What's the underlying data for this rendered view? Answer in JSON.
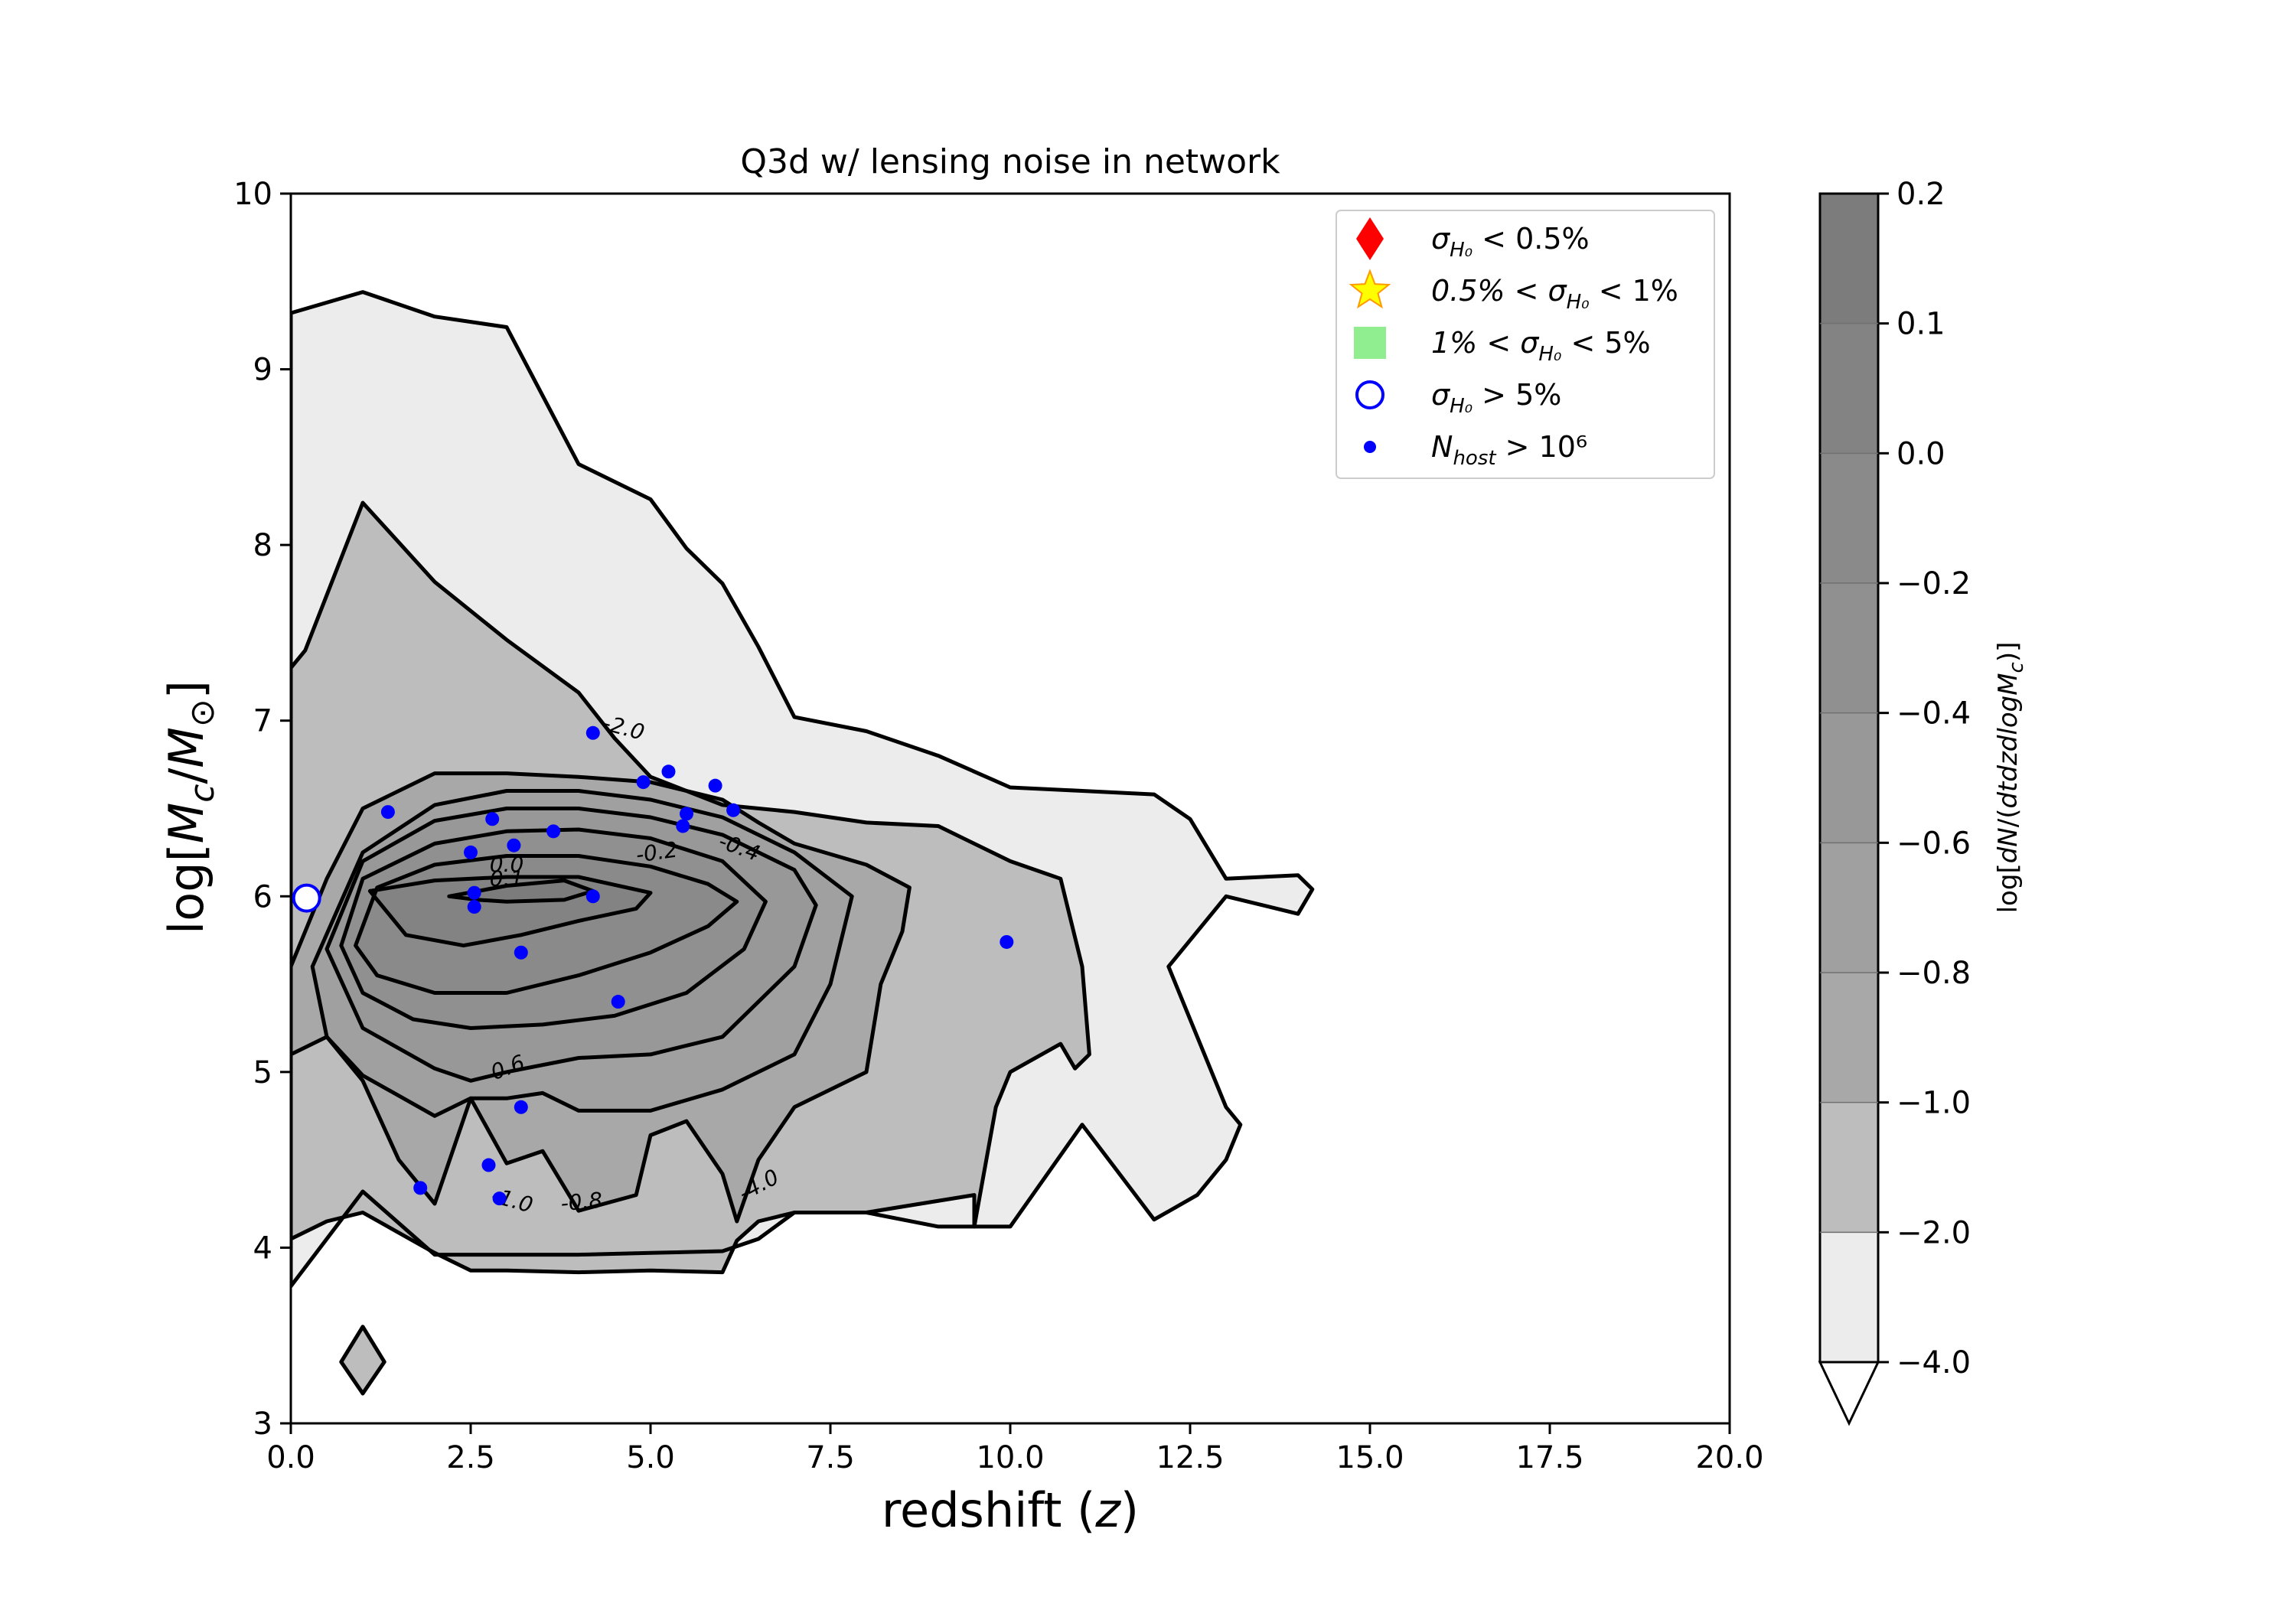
{
  "chart_data": {
    "type": "contour",
    "title": "Q3d w/ lensing noise in network",
    "xlabel": "redshift (z)",
    "ylabel": "log[M_c/M_⊙]",
    "xlim": [
      0,
      20
    ],
    "ylim": [
      3,
      10
    ],
    "xticks": [
      "0.0",
      "2.5",
      "5.0",
      "7.5",
      "10.0",
      "12.5",
      "15.0",
      "17.5",
      "20.0"
    ],
    "yticks": [
      "3",
      "4",
      "5",
      "6",
      "7",
      "8",
      "9",
      "10"
    ],
    "colorbar": {
      "label": "log[dN/(dtdzdlogM_c)]",
      "levels": [
        -4.0,
        -2.0,
        -1.0,
        -0.8,
        -0.6,
        -0.4,
        -0.2,
        0.0,
        0.1,
        0.2
      ],
      "tick_labels": [
        "−4.0",
        "−2.0",
        "−1.0",
        "−0.8",
        "−0.6",
        "−0.4",
        "−0.2",
        "0.0",
        "0.1",
        "0.2"
      ],
      "colors": [
        "#ececec",
        "#bdbdbd",
        "#a8a8a8",
        "#a0a0a0",
        "#989898",
        "#909090",
        "#8a8a8a",
        "#838383",
        "#7c7c7c"
      ],
      "extend": "min"
    },
    "contour_labels": [
      "-4.0",
      "-2.0",
      "-1.0",
      "-0.8",
      "-0.6",
      "-0.4",
      "-0.2",
      "0.0",
      "0.1"
    ],
    "contours": [
      {
        "level": -4.0,
        "x": [
          0,
          1.0,
          2.0,
          3.0,
          4.0,
          5.0,
          5.5,
          6.0,
          6.5,
          7.0,
          8.0,
          9.0,
          10.0,
          11.0,
          12.0,
          12.5,
          13.0,
          14.0,
          14.2,
          14.0,
          13.0,
          12.2,
          12.8,
          13.0,
          13.2,
          13.0,
          12.6,
          12.0,
          11.0,
          10.0,
          9.0,
          8.0,
          7.0,
          6.5,
          6.0,
          5.0,
          4.0,
          3.0,
          2.0,
          1.0,
          0
        ],
        "y": [
          9.32,
          9.44,
          9.3,
          9.24,
          8.46,
          8.26,
          7.98,
          7.78,
          7.42,
          7.02,
          6.94,
          6.8,
          6.62,
          6.6,
          6.58,
          6.44,
          6.1,
          6.12,
          6.04,
          5.9,
          6.0,
          5.6,
          5.0,
          4.8,
          4.7,
          4.5,
          4.3,
          4.16,
          4.7,
          4.12,
          4.12,
          4.2,
          4.2,
          4.05,
          3.98,
          3.97,
          3.96,
          3.96,
          3.96,
          4.32,
          3.78
        ]
      },
      {
        "level": -2.0,
        "x": [
          0,
          0.2,
          1.0,
          2.0,
          3.0,
          4.0,
          4.5,
          5.0,
          6.0,
          7.0,
          8.0,
          9.0,
          10.0,
          10.7,
          11.0,
          11.1,
          10.9,
          10.7,
          10.0,
          9.8,
          9.5,
          9.5,
          8.0,
          7.0,
          6.5,
          6.2,
          6.0,
          5.0,
          4.0,
          3.0,
          2.5,
          2.0,
          1.0,
          0.5,
          0
        ],
        "y": [
          7.3,
          7.4,
          8.24,
          7.79,
          7.46,
          7.16,
          6.9,
          6.68,
          6.52,
          6.48,
          6.42,
          6.4,
          6.2,
          6.1,
          5.6,
          5.1,
          5.02,
          5.16,
          5.0,
          4.8,
          4.12,
          4.3,
          4.2,
          4.2,
          4.15,
          4.04,
          3.86,
          3.87,
          3.86,
          3.87,
          3.87,
          3.97,
          4.2,
          4.15,
          4.05
        ]
      },
      {
        "level": -1.0,
        "x": [
          0,
          0.5,
          1.0,
          2.0,
          3.0,
          4.0,
          5.0,
          6.0,
          6.5,
          7.0,
          8.0,
          8.6,
          8.5,
          8.2,
          8.0,
          7.0,
          6.5,
          6.2,
          6.0,
          5.5,
          5.0,
          4.8,
          4.0,
          3.5,
          3.0,
          2.5,
          2.0,
          1.5,
          1.0,
          0.5,
          0
        ],
        "y": [
          5.6,
          6.1,
          6.5,
          6.7,
          6.7,
          6.68,
          6.65,
          6.55,
          6.42,
          6.3,
          6.18,
          6.05,
          5.8,
          5.5,
          5.0,
          4.8,
          4.5,
          4.15,
          4.42,
          4.72,
          4.64,
          4.3,
          4.21,
          4.55,
          4.48,
          4.85,
          4.25,
          4.5,
          4.95,
          5.2,
          5.1
        ]
      },
      {
        "level": -0.8,
        "x": [
          0.3,
          1.0,
          2.0,
          3.0,
          4.0,
          5.0,
          6.0,
          7.0,
          7.8,
          7.5,
          7.0,
          6.0,
          5.0,
          4.0,
          3.5,
          3.0,
          2.5,
          2.0,
          1.0,
          0.5,
          0.3
        ],
        "y": [
          5.6,
          6.25,
          6.52,
          6.6,
          6.6,
          6.55,
          6.45,
          6.25,
          6.0,
          5.5,
          5.1,
          4.9,
          4.78,
          4.78,
          4.88,
          4.85,
          4.85,
          4.75,
          4.98,
          5.2,
          5.6
        ]
      },
      {
        "level": -0.6,
        "x": [
          0.5,
          1.0,
          2.0,
          3.0,
          4.0,
          5.0,
          6.0,
          7.0,
          7.3,
          7.0,
          6.0,
          5.0,
          4.0,
          3.0,
          2.5,
          2.0,
          1.0,
          0.5
        ],
        "y": [
          5.7,
          6.2,
          6.43,
          6.5,
          6.5,
          6.45,
          6.35,
          6.15,
          5.95,
          5.6,
          5.2,
          5.1,
          5.08,
          5.0,
          4.95,
          5.02,
          5.25,
          5.7
        ]
      },
      {
        "level": -0.4,
        "x": [
          0.7,
          1.0,
          2.0,
          3.0,
          4.0,
          5.0,
          6.0,
          6.6,
          6.3,
          5.5,
          4.5,
          3.5,
          2.5,
          1.7,
          1.0,
          0.7
        ],
        "y": [
          5.72,
          6.1,
          6.3,
          6.37,
          6.38,
          6.33,
          6.2,
          5.97,
          5.7,
          5.45,
          5.32,
          5.27,
          5.25,
          5.3,
          5.45,
          5.72
        ]
      },
      {
        "level": -0.2,
        "x": [
          0.9,
          1.2,
          2.0,
          3.0,
          4.0,
          5.0,
          5.8,
          6.2,
          5.8,
          5.0,
          4.0,
          3.0,
          2.0,
          1.2,
          0.9
        ],
        "y": [
          5.72,
          6.05,
          6.18,
          6.23,
          6.23,
          6.17,
          6.07,
          5.97,
          5.83,
          5.68,
          5.55,
          5.45,
          5.45,
          5.55,
          5.72
        ]
      },
      {
        "level": 0.0,
        "x": [
          1.1,
          2.0,
          3.0,
          4.0,
          5.0,
          4.8,
          4.0,
          3.2,
          2.4,
          1.6,
          1.1
        ],
        "y": [
          6.03,
          6.09,
          6.11,
          6.11,
          6.02,
          5.93,
          5.86,
          5.78,
          5.72,
          5.78,
          6.03
        ]
      },
      {
        "level": 0.1,
        "x": [
          2.2,
          3.0,
          3.8,
          4.2,
          3.8,
          3.0,
          2.6,
          2.2
        ],
        "y": [
          6.0,
          6.06,
          6.09,
          6.03,
          5.98,
          5.97,
          5.98,
          6.0
        ]
      },
      {
        "level": -2.0,
        "x": [
          0.7,
          1.0,
          1.3,
          1.0,
          0.7
        ],
        "y": [
          3.35,
          3.55,
          3.35,
          3.17,
          3.35
        ]
      }
    ],
    "points": {
      "host": {
        "label": "N_host > 10^6",
        "color": "#0000ff",
        "x": [
          1.35,
          2.5,
          2.8,
          3.1,
          3.65,
          4.2,
          4.9,
          5.25,
          5.9,
          6.15,
          2.55,
          2.55,
          3.2,
          4.2,
          4.55,
          5.5,
          5.45,
          9.95,
          3.2,
          2.75,
          2.9,
          1.8
        ],
        "y": [
          6.48,
          6.25,
          6.44,
          6.29,
          6.37,
          6.93,
          6.65,
          6.71,
          6.63,
          6.49,
          6.02,
          5.94,
          5.68,
          6.0,
          5.4,
          6.47,
          6.4,
          5.74,
          4.8,
          4.47,
          4.28,
          4.34
        ]
      },
      "open_circle": {
        "label": "σ_H0 > 5%",
        "color": "#0000ff",
        "x": [
          0.22
        ],
        "y": [
          5.99
        ]
      }
    },
    "legend": {
      "placement": "top-right",
      "entries": [
        {
          "label_parts": [
            "σ",
            "H₀",
            " < 0.5%"
          ],
          "marker": "diamond",
          "color": "#ff0000"
        },
        {
          "label_parts": [
            "0.5% < σ",
            "H₀",
            " < 1%"
          ],
          "marker": "star",
          "color": "#ffff00"
        },
        {
          "label_parts": [
            "1% < σ",
            "H₀",
            " < 5%"
          ],
          "marker": "square",
          "color": "#90ee90"
        },
        {
          "label_parts": [
            "σ",
            "H₀",
            " > 5%"
          ],
          "marker": "open-circle",
          "color": "#0000ff"
        },
        {
          "label_parts": [
            "N",
            "host",
            " > 10⁶"
          ],
          "marker": "dot",
          "color": "#0000ff"
        }
      ]
    }
  }
}
